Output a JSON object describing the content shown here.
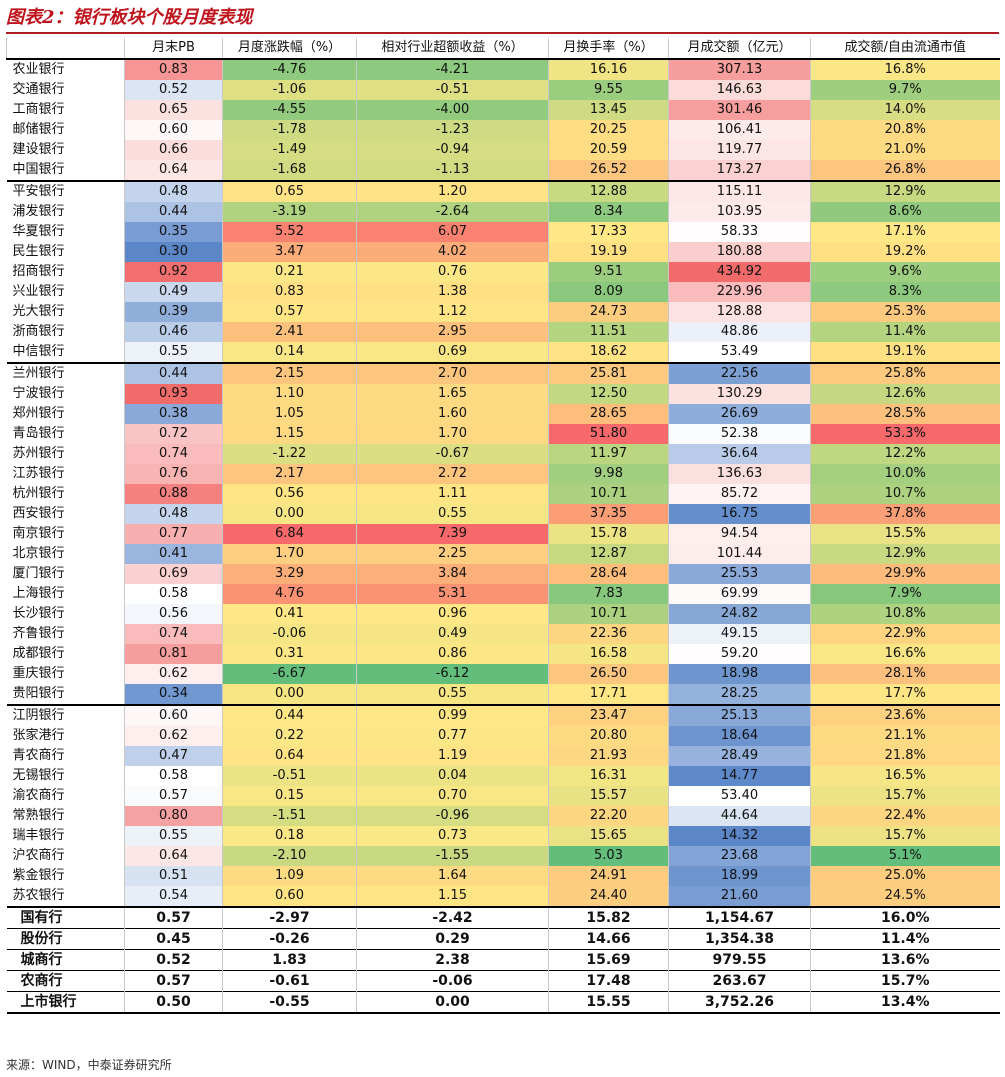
{
  "title": "图表2：银行板块个股月度表现",
  "source": "来源：WIND，中泰证券研究所",
  "headers": [
    "",
    "月末PB",
    "月度涨跌幅（%）",
    "相对行业超额收益（%）",
    "月换手率（%）",
    "月成交额（亿元）",
    "成交额/自由流通市值"
  ],
  "rows": [
    [
      "农业银行",
      "0.83",
      "-4.76",
      "-4.21",
      "16.16",
      "307.13",
      "16.8%"
    ],
    [
      "交通银行",
      "0.52",
      "-1.06",
      "-0.51",
      "9.55",
      "146.63",
      "9.7%"
    ],
    [
      "工商银行",
      "0.65",
      "-4.55",
      "-4.00",
      "13.45",
      "301.46",
      "14.0%"
    ],
    [
      "邮储银行",
      "0.60",
      "-1.78",
      "-1.23",
      "20.25",
      "106.41",
      "20.8%"
    ],
    [
      "建设银行",
      "0.66",
      "-1.49",
      "-0.94",
      "20.59",
      "119.77",
      "21.0%"
    ],
    [
      "中国银行",
      "0.64",
      "-1.68",
      "-1.13",
      "26.52",
      "173.27",
      "26.8%"
    ],
    [
      "平安银行",
      "0.48",
      "0.65",
      "1.20",
      "12.88",
      "115.11",
      "12.9%"
    ],
    [
      "浦发银行",
      "0.44",
      "-3.19",
      "-2.64",
      "8.34",
      "103.95",
      "8.6%"
    ],
    [
      "华夏银行",
      "0.35",
      "5.52",
      "6.07",
      "17.33",
      "58.33",
      "17.1%"
    ],
    [
      "民生银行",
      "0.30",
      "3.47",
      "4.02",
      "19.19",
      "180.88",
      "19.2%"
    ],
    [
      "招商银行",
      "0.92",
      "0.21",
      "0.76",
      "9.51",
      "434.92",
      "9.6%"
    ],
    [
      "兴业银行",
      "0.49",
      "0.83",
      "1.38",
      "8.09",
      "229.96",
      "8.3%"
    ],
    [
      "光大银行",
      "0.39",
      "0.57",
      "1.12",
      "24.73",
      "128.88",
      "25.3%"
    ],
    [
      "浙商银行",
      "0.46",
      "2.41",
      "2.95",
      "11.51",
      "48.86",
      "11.4%"
    ],
    [
      "中信银行",
      "0.55",
      "0.14",
      "0.69",
      "18.62",
      "53.49",
      "19.1%"
    ],
    [
      "兰州银行",
      "0.44",
      "2.15",
      "2.70",
      "25.81",
      "22.56",
      "25.8%"
    ],
    [
      "宁波银行",
      "0.93",
      "1.10",
      "1.65",
      "12.50",
      "130.29",
      "12.6%"
    ],
    [
      "郑州银行",
      "0.38",
      "1.05",
      "1.60",
      "28.65",
      "26.69",
      "28.5%"
    ],
    [
      "青岛银行",
      "0.72",
      "1.15",
      "1.70",
      "51.80",
      "52.38",
      "53.3%"
    ],
    [
      "苏州银行",
      "0.74",
      "-1.22",
      "-0.67",
      "11.97",
      "36.64",
      "12.2%"
    ],
    [
      "江苏银行",
      "0.76",
      "2.17",
      "2.72",
      "9.98",
      "136.63",
      "10.0%"
    ],
    [
      "杭州银行",
      "0.88",
      "0.56",
      "1.11",
      "10.71",
      "85.72",
      "10.7%"
    ],
    [
      "西安银行",
      "0.48",
      "0.00",
      "0.55",
      "37.35",
      "16.75",
      "37.8%"
    ],
    [
      "南京银行",
      "0.77",
      "6.84",
      "7.39",
      "15.78",
      "94.54",
      "15.5%"
    ],
    [
      "北京银行",
      "0.41",
      "1.70",
      "2.25",
      "12.87",
      "101.44",
      "12.9%"
    ],
    [
      "厦门银行",
      "0.69",
      "3.29",
      "3.84",
      "28.64",
      "25.53",
      "29.9%"
    ],
    [
      "上海银行",
      "0.58",
      "4.76",
      "5.31",
      "7.83",
      "69.99",
      "7.9%"
    ],
    [
      "长沙银行",
      "0.56",
      "0.41",
      "0.96",
      "10.71",
      "24.82",
      "10.8%"
    ],
    [
      "齐鲁银行",
      "0.74",
      "-0.06",
      "0.49",
      "22.36",
      "49.15",
      "22.9%"
    ],
    [
      "成都银行",
      "0.81",
      "0.31",
      "0.86",
      "16.58",
      "59.20",
      "16.6%"
    ],
    [
      "重庆银行",
      "0.62",
      "-6.67",
      "-6.12",
      "26.50",
      "18.98",
      "28.1%"
    ],
    [
      "贵阳银行",
      "0.34",
      "0.00",
      "0.55",
      "17.71",
      "28.25",
      "17.7%"
    ],
    [
      "江阴银行",
      "0.60",
      "0.44",
      "0.99",
      "23.47",
      "25.13",
      "23.6%"
    ],
    [
      "张家港行",
      "0.62",
      "0.22",
      "0.77",
      "20.80",
      "18.64",
      "21.1%"
    ],
    [
      "青农商行",
      "0.47",
      "0.64",
      "1.19",
      "21.93",
      "28.49",
      "21.8%"
    ],
    [
      "无锡银行",
      "0.58",
      "-0.51",
      "0.04",
      "16.31",
      "14.77",
      "16.5%"
    ],
    [
      "渝农商行",
      "0.57",
      "0.15",
      "0.70",
      "15.57",
      "53.40",
      "15.7%"
    ],
    [
      "常熟银行",
      "0.80",
      "-1.51",
      "-0.96",
      "22.20",
      "44.64",
      "22.4%"
    ],
    [
      "瑞丰银行",
      "0.55",
      "0.18",
      "0.73",
      "15.65",
      "14.32",
      "15.7%"
    ],
    [
      "沪农商行",
      "0.64",
      "-2.10",
      "-1.55",
      "5.03",
      "23.68",
      "5.1%"
    ],
    [
      "紫金银行",
      "0.51",
      "1.09",
      "1.64",
      "24.91",
      "18.99",
      "25.0%"
    ],
    [
      "苏农银行",
      "0.54",
      "0.60",
      "1.15",
      "24.40",
      "21.60",
      "24.5%"
    ]
  ],
  "summary": [
    [
      "国有行",
      "0.57",
      "-2.97",
      "-2.42",
      "15.82",
      "1,154.67",
      "16.0%"
    ],
    [
      "股份行",
      "0.45",
      "-0.26",
      "0.29",
      "14.66",
      "1,354.38",
      "11.4%"
    ],
    [
      "城商行",
      "0.52",
      "1.83",
      "2.38",
      "15.69",
      "979.55",
      "13.6%"
    ],
    [
      "农商行",
      "0.57",
      "-0.61",
      "-0.06",
      "17.48",
      "263.67",
      "15.7%"
    ],
    [
      "上市银行",
      "0.50",
      "-0.55",
      "0.00",
      "15.55",
      "3,752.26",
      "13.4%"
    ]
  ],
  "group_breaks": [
    6,
    15,
    32
  ],
  "color_scales": {
    "pb": {
      "low": "#5b87c9",
      "mid": "#ffffff",
      "high": "#f26b6b",
      "ref": [
        0.3,
        0.62,
        0.93
      ]
    },
    "diverging": {
      "low": "#5b87c9",
      "mid": "#ffffff",
      "high": "#f26b6b",
      "ref": [
        -6.67,
        0,
        7.39
      ]
    },
    "tricolor": {
      "low": "#63be7b",
      "mid": "#ffe885",
      "high": "#f8696b"
    },
    "amount": {
      "low": "#5b87c9",
      "mid": "#ffffff",
      "high": "#f26b6b"
    },
    "growth_mid": "#ffe885",
    "growth_low": "#63be7b",
    "growth_high": "#f8696b"
  }
}
